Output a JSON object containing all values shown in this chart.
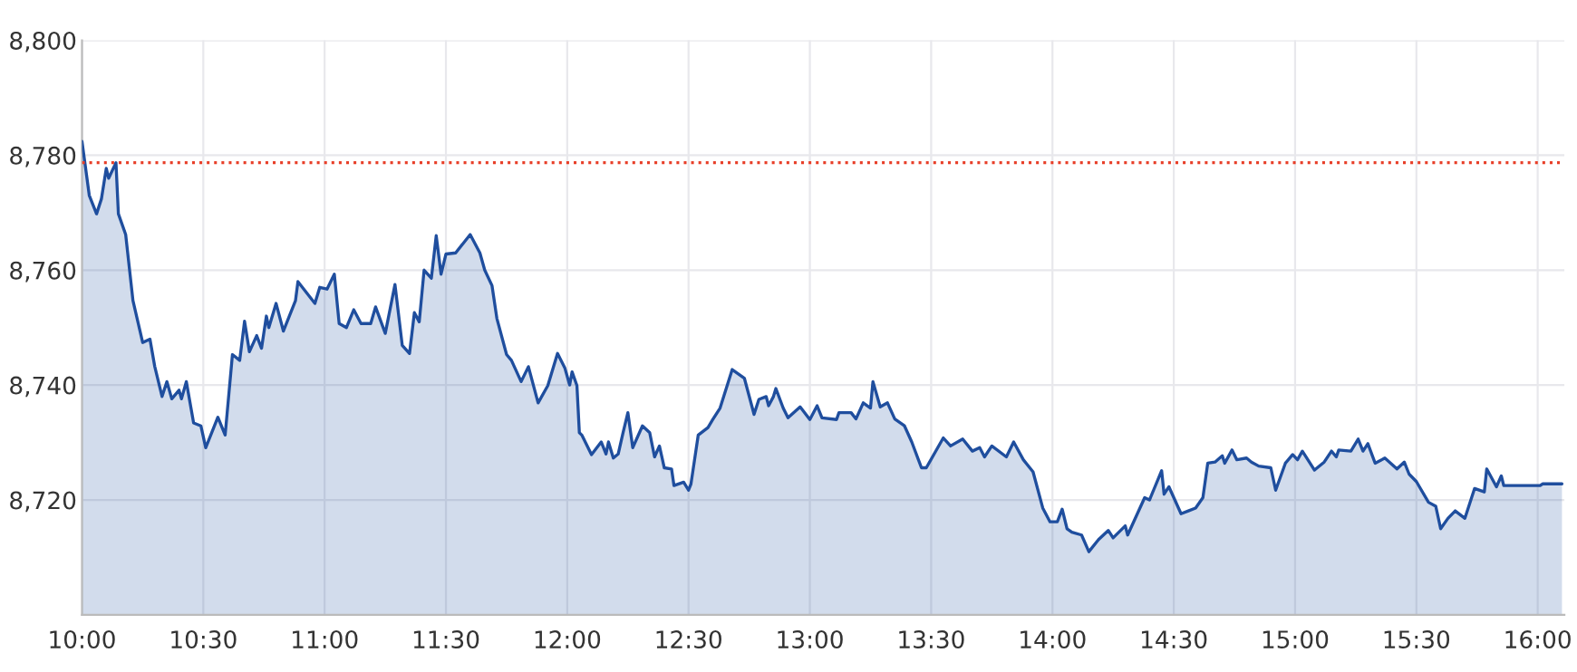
{
  "chart_data": {
    "type": "area",
    "x": [
      10.0,
      10.03,
      10.06,
      10.08,
      10.1,
      10.11,
      10.14,
      10.15,
      10.18,
      10.21,
      10.25,
      10.28,
      10.3,
      10.33,
      10.35,
      10.37,
      10.4,
      10.41,
      10.43,
      10.46,
      10.49,
      10.51,
      10.56,
      10.59,
      10.62,
      10.65,
      10.67,
      10.69,
      10.72,
      10.74,
      10.76,
      10.77,
      10.8,
      10.83,
      10.88,
      10.89,
      10.96,
      10.98,
      11.01,
      11.04,
      11.06,
      11.09,
      11.12,
      11.15,
      11.19,
      11.21,
      11.25,
      11.29,
      11.32,
      11.35,
      11.37,
      11.39,
      11.41,
      11.44,
      11.46,
      11.48,
      11.5,
      11.54,
      11.6,
      11.64,
      11.66,
      11.69,
      11.71,
      11.75,
      11.77,
      11.81,
      11.84,
      11.88,
      11.92,
      11.96,
      11.99,
      12.01,
      12.02,
      12.04,
      12.05,
      12.06,
      12.1,
      12.14,
      12.16,
      12.17,
      12.19,
      12.21,
      12.23,
      12.25,
      12.27,
      12.31,
      12.34,
      12.36,
      12.38,
      12.4,
      12.43,
      12.44,
      12.48,
      12.5,
      12.51,
      12.54,
      12.58,
      12.6,
      12.63,
      12.68,
      12.73,
      12.77,
      12.79,
      12.82,
      12.83,
      12.85,
      12.86,
      12.89,
      12.91,
      12.96,
      13.0,
      13.03,
      13.05,
      13.11,
      13.12,
      13.17,
      13.19,
      13.22,
      13.25,
      13.26,
      13.29,
      13.32,
      13.35,
      13.39,
      13.42,
      13.46,
      13.48,
      13.55,
      13.58,
      13.63,
      13.67,
      13.7,
      13.72,
      13.75,
      13.81,
      13.84,
      13.88,
      13.92,
      13.96,
      13.99,
      14.02,
      14.04,
      14.06,
      14.08,
      14.12,
      14.15,
      14.19,
      14.23,
      14.25,
      14.3,
      14.31,
      14.38,
      14.4,
      14.45,
      14.46,
      14.48,
      14.53,
      14.56,
      14.59,
      14.62,
      14.64,
      14.67,
      14.7,
      14.71,
      14.74,
      14.76,
      14.8,
      14.82,
      14.85,
      14.9,
      14.92,
      14.96,
      14.99,
      15.01,
      15.03,
      15.08,
      15.12,
      15.15,
      15.17,
      15.18,
      15.23,
      15.26,
      15.28,
      15.3,
      15.33,
      15.37,
      15.42,
      15.45,
      15.47,
      15.5,
      15.55,
      15.58,
      15.6,
      15.63,
      15.66,
      15.7,
      15.74,
      15.78,
      15.79,
      15.83,
      15.85,
      15.86,
      16.01,
      16.02,
      16.1
    ],
    "series": [
      {
        "color": "#1f4e9e",
        "values": [
          8782.4,
          8773,
          8769.8,
          8772.4,
          8777.7,
          8776,
          8778.7,
          8769.8,
          8766.2,
          8754.7,
          8747.4,
          8748,
          8743.2,
          8738,
          8740.6,
          8737.6,
          8739.1,
          8737.6,
          8740.6,
          8733.4,
          8732.9,
          8729.1,
          8734.4,
          8731.3,
          8745.3,
          8744.3,
          8751.1,
          8745.8,
          8748.6,
          8746.4,
          8752,
          8750,
          8754.2,
          8749.4,
          8754.7,
          8758,
          8754.2,
          8757,
          8756.7,
          8759.3,
          8750.7,
          8750,
          8753.1,
          8750.7,
          8750.7,
          8753.6,
          8749,
          8757.5,
          8746.9,
          8745.5,
          8752.6,
          8751,
          8760,
          8758.6,
          8766,
          8759.3,
          8762.8,
          8763,
          8766.2,
          8763,
          8760,
          8757.3,
          8751.6,
          8745.3,
          8744.3,
          8740.6,
          8743.2,
          8736.9,
          8739.9,
          8745.5,
          8743,
          8740,
          8742.3,
          8739.9,
          8731.7,
          8731.3,
          8727.9,
          8730.1,
          8728,
          8730.1,
          8727.3,
          8728,
          8731.7,
          8735.2,
          8729.1,
          8732.9,
          8731.7,
          8727.5,
          8729.4,
          8725.6,
          8725.4,
          8722.5,
          8723.1,
          8721.7,
          8722.8,
          8731.3,
          8732.6,
          8734,
          8736,
          8742.7,
          8741.2,
          8734.9,
          8737.5,
          8738,
          8736.4,
          8738,
          8739.4,
          8736,
          8734.3,
          8736.2,
          8734,
          8736.4,
          8734.3,
          8734,
          8735.2,
          8735.2,
          8734.1,
          8736.9,
          8736,
          8740.6,
          8736.2,
          8736.9,
          8734.1,
          8732.9,
          8730.1,
          8725.6,
          8725.6,
          8730.8,
          8729.4,
          8730.6,
          8728.5,
          8729.1,
          8727.5,
          8729.4,
          8727.5,
          8730.1,
          8727,
          8724.9,
          8718.6,
          8716.2,
          8716.2,
          8718.4,
          8715,
          8714.4,
          8713.9,
          8711,
          8713.1,
          8714.7,
          8713.4,
          8715.5,
          8713.9,
          8720.4,
          8720,
          8725.1,
          8721,
          8722.3,
          8717.6,
          8718.1,
          8718.6,
          8720.4,
          8726.4,
          8726.6,
          8727.7,
          8726.4,
          8728.7,
          8727,
          8727.3,
          8726.6,
          8725.9,
          8725.6,
          8721.7,
          8726.4,
          8727.9,
          8727,
          8728.5,
          8725.2,
          8726.6,
          8728.5,
          8727.5,
          8728.7,
          8728.5,
          8730.6,
          8728.5,
          8729.8,
          8726.4,
          8727.3,
          8725.4,
          8726.6,
          8724.5,
          8723.2,
          8719.6,
          8718.9,
          8715,
          8716.8,
          8718.1,
          8716.8,
          8722,
          8721.4,
          8725.4,
          8722.3,
          8724.2,
          8722.5,
          8722.5,
          8722.8,
          8722.8
        ]
      }
    ],
    "xlim": [
      10,
      16.11
    ],
    "ylim": [
      8700,
      8800
    ],
    "xticks": [
      {
        "value": 10,
        "label": "10:00"
      },
      {
        "value": 10.5,
        "label": "10:30"
      },
      {
        "value": 11,
        "label": "11:00"
      },
      {
        "value": 11.5,
        "label": "11:30"
      },
      {
        "value": 12,
        "label": "12:00"
      },
      {
        "value": 12.5,
        "label": "12:30"
      },
      {
        "value": 13,
        "label": "13:00"
      },
      {
        "value": 13.5,
        "label": "13:30"
      },
      {
        "value": 14,
        "label": "14:00"
      },
      {
        "value": 14.5,
        "label": "14:30"
      },
      {
        "value": 15,
        "label": "15:00"
      },
      {
        "value": 15.5,
        "label": "15:30"
      },
      {
        "value": 16,
        "label": "16:00"
      }
    ],
    "yticks": [
      {
        "value": 8720,
        "label": "8,720"
      },
      {
        "value": 8740,
        "label": "8,740"
      },
      {
        "value": 8760,
        "label": "8,760"
      },
      {
        "value": 8780,
        "label": "8,780"
      },
      {
        "value": 8800,
        "label": "8,800"
      }
    ],
    "ref_lines": [
      {
        "axis": "y",
        "value": 8778.7,
        "color": "#e8402a",
        "line_style": "dotted"
      }
    ],
    "grid": true
  }
}
